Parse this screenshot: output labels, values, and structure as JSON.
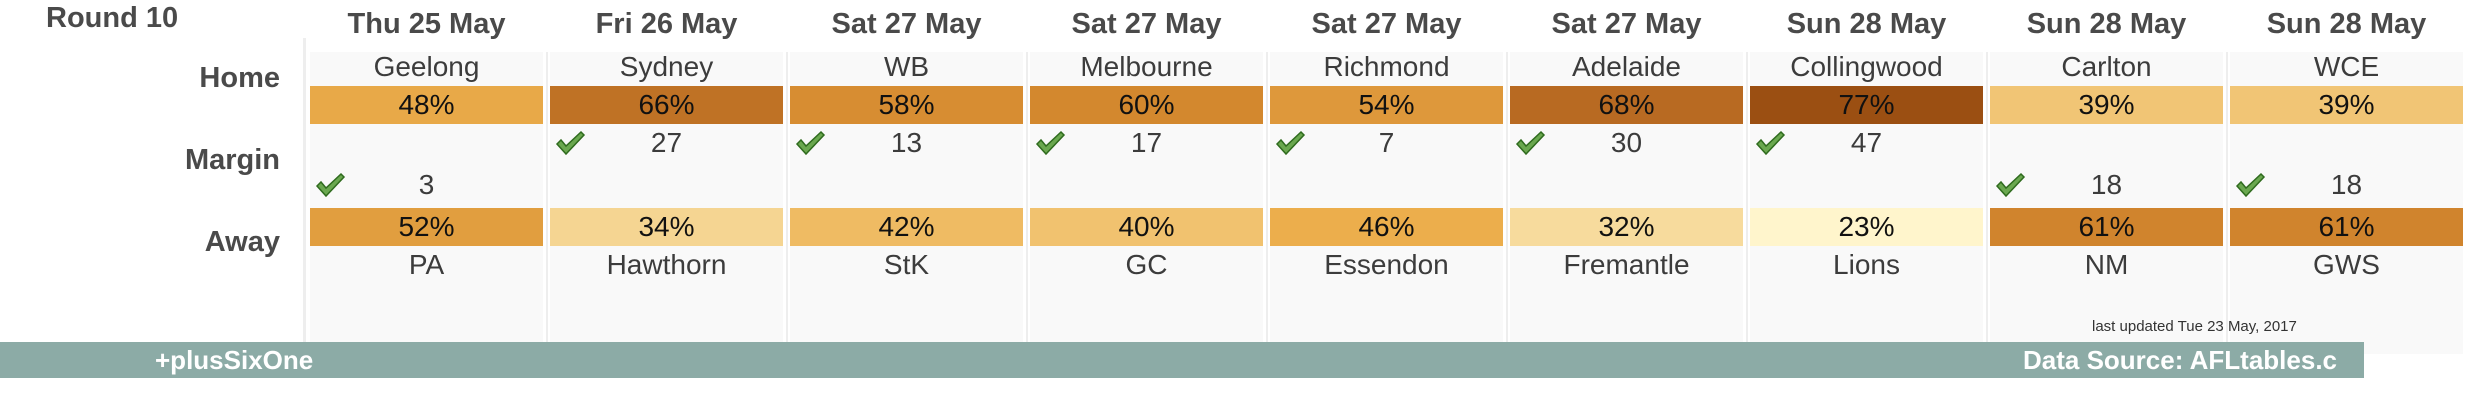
{
  "header": {
    "round": "Round 10"
  },
  "row_labels": {
    "home": "Home",
    "margin": "Margin",
    "away": "Away"
  },
  "footer": {
    "left": "+plusSixOne",
    "right": "Data Source: AFLtables.c",
    "updated": "last updated Tue 23 May, 2017"
  },
  "chart_data": {
    "type": "table",
    "games": [
      {
        "date": "Thu 25 May",
        "home": "Geelong",
        "home_pct": "48%",
        "home_value": 48,
        "away": "PA",
        "away_pct": "52%",
        "away_value": 52,
        "margin": "3",
        "winner": "away"
      },
      {
        "date": "Fri 26 May",
        "home": "Sydney",
        "home_pct": "66%",
        "home_value": 66,
        "away": "Hawthorn",
        "away_pct": "34%",
        "away_value": 34,
        "margin": "27",
        "winner": "home"
      },
      {
        "date": "Sat 27 May",
        "home": "WB",
        "home_pct": "58%",
        "home_value": 58,
        "away": "StK",
        "away_pct": "42%",
        "away_value": 42,
        "margin": "13",
        "winner": "home"
      },
      {
        "date": "Sat 27 May",
        "home": "Melbourne",
        "home_pct": "60%",
        "home_value": 60,
        "away": "GC",
        "away_pct": "40%",
        "away_value": 40,
        "margin": "17",
        "winner": "home"
      },
      {
        "date": "Sat 27 May",
        "home": "Richmond",
        "home_pct": "54%",
        "home_value": 54,
        "away": "Essendon",
        "away_pct": "46%",
        "away_value": 46,
        "margin": "7",
        "winner": "home"
      },
      {
        "date": "Sat 27 May",
        "home": "Adelaide",
        "home_pct": "68%",
        "home_value": 68,
        "away": "Fremantle",
        "away_pct": "32%",
        "away_value": 32,
        "margin": "30",
        "winner": "home"
      },
      {
        "date": "Sun 28 May",
        "home": "Collingwood",
        "home_pct": "77%",
        "home_value": 77,
        "away": "Lions",
        "away_pct": "23%",
        "away_value": 23,
        "margin": "47",
        "winner": "home"
      },
      {
        "date": "Sun 28 May",
        "home": "Carlton",
        "home_pct": "39%",
        "home_value": 39,
        "away": "NM",
        "away_pct": "61%",
        "away_value": 61,
        "margin": "18",
        "winner": "away"
      },
      {
        "date": "Sun 28 May",
        "home": "WCE",
        "home_pct": "39%",
        "home_value": 39,
        "away": "GWS",
        "away_pct": "61%",
        "away_value": 61,
        "margin": "18",
        "winner": "away"
      }
    ]
  }
}
